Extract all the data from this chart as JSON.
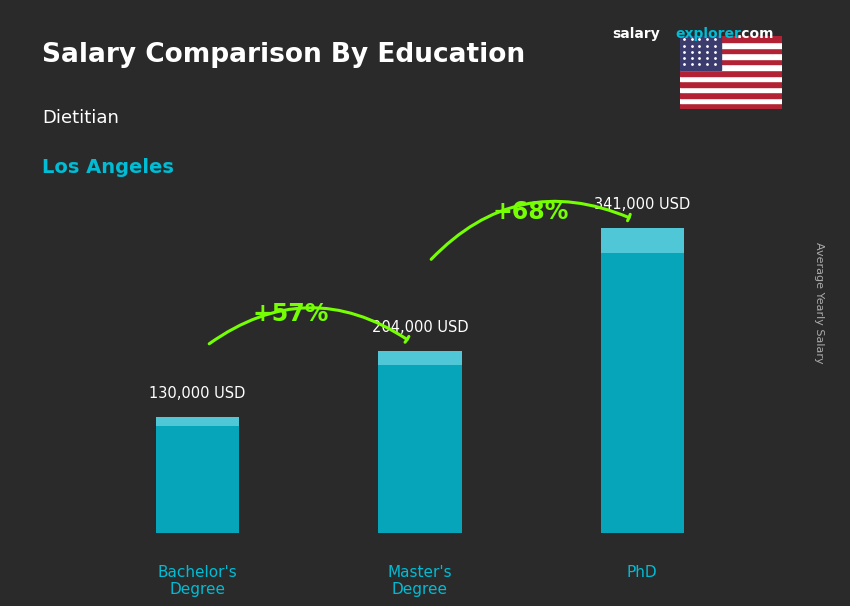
{
  "title_line1": "Salary Comparison By Education",
  "subtitle1": "Dietitian",
  "subtitle2": "Los Angeles",
  "ylabel": "Average Yearly Salary",
  "categories": [
    "Bachelor's\nDegree",
    "Master's\nDegree",
    "PhD"
  ],
  "values": [
    130000,
    204000,
    341000
  ],
  "value_labels": [
    "130,000 USD",
    "204,000 USD",
    "341,000 USD"
  ],
  "bar_color": "#00bcd4",
  "bar_color_top": "#80deea",
  "arrow_color": "#76ff03",
  "pct_labels": [
    "+57%",
    "+68%"
  ],
  "bg_color": "#2a2a2a",
  "title_color": "#ffffff",
  "subtitle1_color": "#ffffff",
  "subtitle2_color": "#00bcd4",
  "value_label_color": "#ffffff",
  "pct_color": "#76ff03",
  "xlabel_color": "#00bcd4",
  "site_color1": "#ffffff",
  "site_color2": "#00bcd4",
  "site_text1": "salary",
  "site_text2": "explorer",
  "site_text3": ".com",
  "ylim": [
    0,
    420000
  ]
}
